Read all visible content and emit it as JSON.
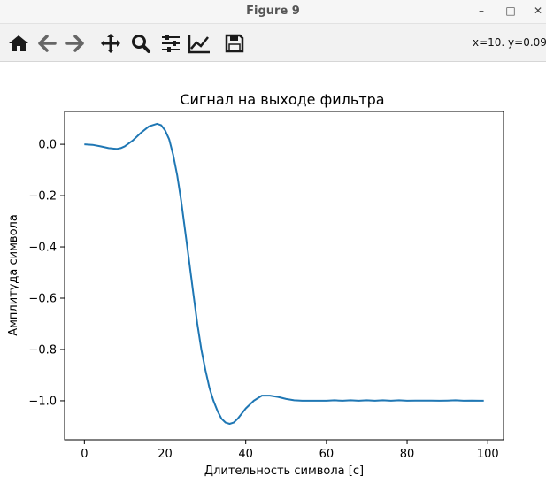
{
  "window": {
    "title": "Figure 9",
    "controls": {
      "minimize": "–",
      "maximize": "□",
      "close": "✕"
    }
  },
  "toolbar": {
    "buttons": [
      {
        "name": "home",
        "icon": "home-icon"
      },
      {
        "name": "back",
        "icon": "arrow-left-icon"
      },
      {
        "name": "forward",
        "icon": "arrow-right-icon"
      },
      {
        "name": "pan",
        "icon": "move-icon"
      },
      {
        "name": "zoom",
        "icon": "magnifier-icon"
      },
      {
        "name": "subplots",
        "icon": "sliders-icon"
      },
      {
        "name": "edit-axes",
        "icon": "chart-line-icon"
      },
      {
        "name": "save",
        "icon": "floppy-disk-icon"
      }
    ],
    "coords_text": "x=10. y=0.09"
  },
  "chart_data": {
    "type": "line",
    "title": "Сигнал на выходе фильтра",
    "xlabel": "Длительность символа [с]",
    "ylabel": "Амплитуда символа",
    "xlim": [
      -4.9,
      103.9
    ],
    "ylim": [
      -1.152,
      0.128
    ],
    "xticks": [
      0,
      20,
      40,
      60,
      80,
      100
    ],
    "xtick_labels": [
      "0",
      "20",
      "40",
      "60",
      "80",
      "100"
    ],
    "yticks": [
      0.0,
      -0.2,
      -0.4,
      -0.6,
      -0.8,
      -1.0
    ],
    "ytick_labels": [
      "0.0",
      "−0.2",
      "−0.4",
      "−0.6",
      "−0.8",
      "−1.0"
    ],
    "grid": false,
    "line_color": "#1f77b4",
    "series": [
      {
        "x": [
          0,
          2,
          4,
          6,
          8,
          9,
          10,
          12,
          14,
          16,
          18,
          19,
          20,
          21,
          22,
          23,
          24,
          25,
          26,
          27,
          28,
          29,
          30,
          31,
          32,
          33,
          34,
          35,
          36,
          37,
          38,
          40,
          42,
          44,
          46,
          48,
          50,
          52,
          54,
          56,
          58,
          60,
          62,
          64,
          66,
          68,
          70,
          72,
          74,
          76,
          78,
          80,
          82,
          84,
          86,
          88,
          90,
          92,
          94,
          96,
          98,
          99
        ],
        "y": [
          0.0,
          -0.002,
          -0.008,
          -0.015,
          -0.018,
          -0.015,
          -0.008,
          0.015,
          0.045,
          0.07,
          0.08,
          0.075,
          0.055,
          0.02,
          -0.04,
          -0.12,
          -0.22,
          -0.34,
          -0.46,
          -0.58,
          -0.7,
          -0.8,
          -0.88,
          -0.95,
          -1.0,
          -1.04,
          -1.07,
          -1.085,
          -1.09,
          -1.085,
          -1.07,
          -1.03,
          -1.0,
          -0.98,
          -0.98,
          -0.985,
          -0.993,
          -0.998,
          -1.0,
          -1.0,
          -1.0,
          -1.0,
          -0.998,
          -1.0,
          -0.998,
          -1.0,
          -0.998,
          -1.0,
          -0.998,
          -1.0,
          -0.998,
          -1.0,
          -0.999,
          -0.999,
          -0.999,
          -1.0,
          -0.999,
          -0.998,
          -1.0,
          -0.999,
          -1.0,
          -1.0
        ]
      }
    ]
  }
}
